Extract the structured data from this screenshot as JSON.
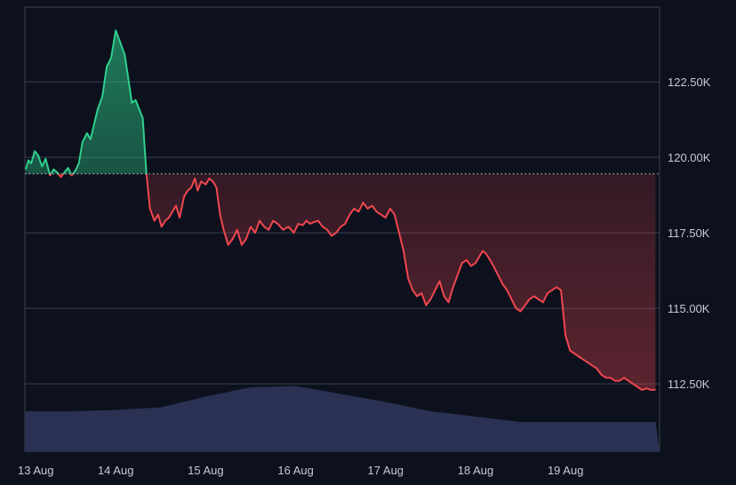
{
  "chart_data": {
    "type": "area",
    "title": "",
    "xlabel": "",
    "ylabel": "",
    "x_ticks": [
      "13 Aug",
      "14 Aug",
      "15 Aug",
      "16 Aug",
      "17 Aug",
      "18 Aug",
      "19 Aug"
    ],
    "y_ticks": [
      "112.50K",
      "115.00K",
      "117.50K",
      "120.00K",
      "122.50K"
    ],
    "y_tick_values": [
      112500,
      115000,
      117500,
      120000,
      122500
    ],
    "ylim": [
      111500,
      124800
    ],
    "xlim": [
      0,
      7
    ],
    "grid": true,
    "baseline": 119450,
    "colors": {
      "up_line": "#2fcf8d",
      "down_line": "#f0474f",
      "volume": "#2c3455",
      "grid": "#3a4150",
      "background": "#0c111d"
    },
    "series": [
      {
        "x": [
          0.0,
          0.03,
          0.06,
          0.1,
          0.14,
          0.18,
          0.22,
          0.27,
          0.31,
          0.35,
          0.39,
          0.43,
          0.47,
          0.51,
          0.55,
          0.59,
          0.63,
          0.68,
          0.72,
          0.76,
          0.8,
          0.85,
          0.9,
          0.95,
          1.0,
          1.05,
          1.1,
          1.14,
          1.18,
          1.22,
          1.26,
          1.3,
          1.34,
          1.38,
          1.43,
          1.47,
          1.51,
          1.55,
          1.59,
          1.63,
          1.67,
          1.71,
          1.76,
          1.8,
          1.84,
          1.88,
          1.91,
          1.95,
          2.0,
          2.04,
          2.08,
          2.12,
          2.16,
          2.2,
          2.25,
          2.3,
          2.35,
          2.4,
          2.45,
          2.5,
          2.55,
          2.6,
          2.65,
          2.7,
          2.75,
          2.8,
          2.86,
          2.92,
          2.98,
          3.03,
          3.08,
          3.12,
          3.16,
          3.2,
          3.25,
          3.3,
          3.35,
          3.4,
          3.45,
          3.5,
          3.55,
          3.6,
          3.65,
          3.7,
          3.75,
          3.8,
          3.85,
          3.9,
          3.95,
          4.0,
          4.05,
          4.1,
          4.15,
          4.2,
          4.25,
          4.3,
          4.35,
          4.4,
          4.45,
          4.5,
          4.55,
          4.6,
          4.65,
          4.7,
          4.75,
          4.8,
          4.85,
          4.9,
          4.95,
          5.0,
          5.04,
          5.08,
          5.12,
          5.16,
          5.2,
          5.25,
          5.3,
          5.35,
          5.4,
          5.45,
          5.5,
          5.55,
          5.6,
          5.65,
          5.7,
          5.75,
          5.8,
          5.85,
          5.9,
          5.95,
          6.0,
          6.05,
          6.1,
          6.15,
          6.2,
          6.25,
          6.3,
          6.35,
          6.4,
          6.45,
          6.5,
          6.55,
          6.6,
          6.65,
          6.7,
          6.75,
          6.8,
          6.85,
          6.9,
          6.95,
          7.0
        ],
        "values": [
          119600,
          119900,
          119800,
          120200,
          120050,
          119700,
          119950,
          119400,
          119600,
          119500,
          119350,
          119500,
          119650,
          119400,
          119550,
          119800,
          120500,
          120800,
          120600,
          121100,
          121600,
          122000,
          123000,
          123300,
          124200,
          123800,
          123400,
          122600,
          121800,
          121900,
          121600,
          121300,
          119500,
          118300,
          117900,
          118100,
          117700,
          117900,
          118000,
          118200,
          118400,
          118000,
          118700,
          118900,
          119000,
          119300,
          118900,
          119200,
          119100,
          119300,
          119200,
          119000,
          118100,
          117600,
          117100,
          117300,
          117600,
          117100,
          117300,
          117700,
          117500,
          117900,
          117700,
          117600,
          117900,
          117800,
          117600,
          117700,
          117500,
          117800,
          117750,
          117900,
          117800,
          117850,
          117900,
          117700,
          117600,
          117400,
          117500,
          117700,
          117800,
          118100,
          118300,
          118200,
          118500,
          118300,
          118400,
          118200,
          118100,
          118000,
          118300,
          118100,
          117500,
          116900,
          116000,
          115600,
          115400,
          115500,
          115100,
          115300,
          115600,
          115900,
          115400,
          115200,
          115700,
          116100,
          116500,
          116600,
          116400,
          116500,
          116700,
          116900,
          116800,
          116600,
          116400,
          116100,
          115800,
          115600,
          115300,
          115000,
          114900,
          115100,
          115300,
          115400,
          115300,
          115200,
          115500,
          115600,
          115700,
          115600,
          114100,
          113600,
          113500,
          113400,
          113300,
          113200,
          113100,
          113000,
          112800,
          112700,
          112700,
          112600,
          112600,
          112700,
          112600,
          112500,
          112400,
          112300,
          112350,
          112300,
          112300
        ]
      }
    ],
    "volume": {
      "x": [
        0.0,
        0.5,
        1.0,
        1.5,
        2.0,
        2.5,
        3.0,
        3.5,
        4.0,
        4.5,
        5.0,
        5.5,
        6.0,
        6.5,
        7.0
      ],
      "values": [
        0.6,
        0.6,
        0.62,
        0.66,
        0.82,
        0.96,
        0.98,
        0.86,
        0.74,
        0.6,
        0.52,
        0.44,
        0.44,
        0.44,
        0.44
      ]
    }
  }
}
